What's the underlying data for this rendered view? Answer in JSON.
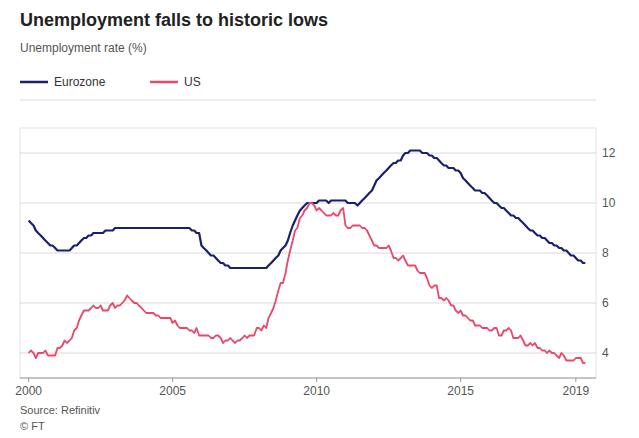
{
  "chart_data": {
    "type": "line",
    "title": "Unemployment falls to historic lows",
    "subtitle": "Unemployment rate (%)",
    "annotations": [
      "Source: Refinitiv",
      "© FT"
    ],
    "legend": "top",
    "grid": true,
    "xlim": [
      1999.7,
      2019.7
    ],
    "xticks": [
      2000,
      2005,
      2010,
      2015,
      2019
    ],
    "ylim": [
      3.0,
      13.0
    ],
    "yticks": [
      4,
      6,
      8,
      10,
      12
    ],
    "x": [
      2000.0,
      2000.08,
      2000.17,
      2000.25,
      2000.33,
      2000.42,
      2000.5,
      2000.58,
      2000.67,
      2000.75,
      2000.83,
      2000.92,
      2001.0,
      2001.08,
      2001.17,
      2001.25,
      2001.33,
      2001.42,
      2001.5,
      2001.58,
      2001.67,
      2001.75,
      2001.83,
      2001.92,
      2002.0,
      2002.08,
      2002.17,
      2002.25,
      2002.33,
      2002.42,
      2002.5,
      2002.58,
      2002.67,
      2002.75,
      2002.83,
      2002.92,
      2003.0,
      2003.08,
      2003.17,
      2003.25,
      2003.33,
      2003.42,
      2003.5,
      2003.58,
      2003.67,
      2003.75,
      2003.83,
      2003.92,
      2004.0,
      2004.08,
      2004.17,
      2004.25,
      2004.33,
      2004.42,
      2004.5,
      2004.58,
      2004.67,
      2004.75,
      2004.83,
      2004.92,
      2005.0,
      2005.08,
      2005.17,
      2005.25,
      2005.33,
      2005.42,
      2005.5,
      2005.58,
      2005.67,
      2005.75,
      2005.83,
      2005.92,
      2006.0,
      2006.08,
      2006.17,
      2006.25,
      2006.33,
      2006.42,
      2006.5,
      2006.58,
      2006.67,
      2006.75,
      2006.83,
      2006.92,
      2007.0,
      2007.08,
      2007.17,
      2007.25,
      2007.33,
      2007.42,
      2007.5,
      2007.58,
      2007.67,
      2007.75,
      2007.83,
      2007.92,
      2008.0,
      2008.08,
      2008.17,
      2008.25,
      2008.33,
      2008.42,
      2008.5,
      2008.58,
      2008.67,
      2008.75,
      2008.83,
      2008.92,
      2009.0,
      2009.08,
      2009.17,
      2009.25,
      2009.33,
      2009.42,
      2009.5,
      2009.58,
      2009.67,
      2009.75,
      2009.83,
      2009.92,
      2010.0,
      2010.08,
      2010.17,
      2010.25,
      2010.33,
      2010.42,
      2010.5,
      2010.58,
      2010.67,
      2010.75,
      2010.83,
      2010.92,
      2011.0,
      2011.08,
      2011.17,
      2011.25,
      2011.33,
      2011.42,
      2011.5,
      2011.58,
      2011.67,
      2011.75,
      2011.83,
      2011.92,
      2012.0,
      2012.08,
      2012.17,
      2012.25,
      2012.33,
      2012.42,
      2012.5,
      2012.58,
      2012.67,
      2012.75,
      2012.83,
      2012.92,
      2013.0,
      2013.08,
      2013.17,
      2013.25,
      2013.33,
      2013.42,
      2013.5,
      2013.58,
      2013.67,
      2013.75,
      2013.83,
      2013.92,
      2014.0,
      2014.08,
      2014.17,
      2014.25,
      2014.33,
      2014.42,
      2014.5,
      2014.58,
      2014.67,
      2014.75,
      2014.83,
      2014.92,
      2015.0,
      2015.08,
      2015.17,
      2015.25,
      2015.33,
      2015.42,
      2015.5,
      2015.58,
      2015.67,
      2015.75,
      2015.83,
      2015.92,
      2016.0,
      2016.08,
      2016.17,
      2016.25,
      2016.33,
      2016.42,
      2016.5,
      2016.58,
      2016.67,
      2016.75,
      2016.83,
      2016.92,
      2017.0,
      2017.08,
      2017.17,
      2017.25,
      2017.33,
      2017.42,
      2017.5,
      2017.58,
      2017.67,
      2017.75,
      2017.83,
      2017.92,
      2018.0,
      2018.08,
      2018.17,
      2018.25,
      2018.33,
      2018.42,
      2018.5,
      2018.58,
      2018.67,
      2018.75,
      2018.83,
      2018.92,
      2019.0,
      2019.08,
      2019.17,
      2019.25,
      2019.33
    ],
    "series": [
      {
        "name": "Eurozone",
        "color": "#1a1f6e",
        "values": [
          9.3,
          9.2,
          9.1,
          8.9,
          8.8,
          8.7,
          8.6,
          8.5,
          8.4,
          8.3,
          8.3,
          8.2,
          8.1,
          8.1,
          8.1,
          8.1,
          8.1,
          8.1,
          8.2,
          8.3,
          8.3,
          8.4,
          8.5,
          8.6,
          8.6,
          8.7,
          8.7,
          8.8,
          8.8,
          8.8,
          8.8,
          8.8,
          8.9,
          8.9,
          8.9,
          8.9,
          9.0,
          9.0,
          9.0,
          9.0,
          9.0,
          9.0,
          9.0,
          9.0,
          9.0,
          9.0,
          9.0,
          9.0,
          9.0,
          9.0,
          9.0,
          9.0,
          9.0,
          9.0,
          9.0,
          9.0,
          9.0,
          9.0,
          9.0,
          9.0,
          9.0,
          9.0,
          9.0,
          9.0,
          9.0,
          9.0,
          9.0,
          9.0,
          8.9,
          8.9,
          8.8,
          8.8,
          8.3,
          8.2,
          8.1,
          8.0,
          7.9,
          7.9,
          7.8,
          7.7,
          7.6,
          7.6,
          7.5,
          7.5,
          7.4,
          7.4,
          7.4,
          7.4,
          7.4,
          7.4,
          7.4,
          7.4,
          7.4,
          7.4,
          7.4,
          7.4,
          7.4,
          7.4,
          7.4,
          7.4,
          7.5,
          7.6,
          7.7,
          7.8,
          7.9,
          8.1,
          8.2,
          8.3,
          8.5,
          8.8,
          9.1,
          9.3,
          9.5,
          9.7,
          9.8,
          9.9,
          10.0,
          10.0,
          10.0,
          10.0,
          10.0,
          10.1,
          10.1,
          10.1,
          10.1,
          10.0,
          10.1,
          10.1,
          10.1,
          10.1,
          10.1,
          10.1,
          10.1,
          10.0,
          10.0,
          10.0,
          10.0,
          9.9,
          10.0,
          10.1,
          10.2,
          10.3,
          10.4,
          10.5,
          10.7,
          10.9,
          11.0,
          11.1,
          11.2,
          11.3,
          11.4,
          11.5,
          11.6,
          11.6,
          11.7,
          11.7,
          11.9,
          12.0,
          12.0,
          12.1,
          12.1,
          12.1,
          12.1,
          12.1,
          12.0,
          12.0,
          12.0,
          11.9,
          11.9,
          11.8,
          11.8,
          11.7,
          11.6,
          11.5,
          11.5,
          11.4,
          11.4,
          11.4,
          11.3,
          11.3,
          11.2,
          11.0,
          10.9,
          10.8,
          10.7,
          10.6,
          10.5,
          10.5,
          10.5,
          10.4,
          10.4,
          10.3,
          10.2,
          10.1,
          10.0,
          10.0,
          9.9,
          9.8,
          9.8,
          9.7,
          9.6,
          9.5,
          9.5,
          9.4,
          9.4,
          9.3,
          9.2,
          9.1,
          9.0,
          8.9,
          8.9,
          8.8,
          8.7,
          8.7,
          8.6,
          8.6,
          8.5,
          8.4,
          8.4,
          8.3,
          8.3,
          8.2,
          8.2,
          8.1,
          8.1,
          8.0,
          7.9,
          7.9,
          7.8,
          7.7,
          7.7,
          7.6,
          7.6
        ]
      },
      {
        "name": "US",
        "color": "#e8486a",
        "values": [
          4.0,
          4.1,
          4.0,
          3.8,
          4.0,
          4.0,
          4.0,
          4.1,
          3.9,
          3.9,
          3.9,
          3.9,
          4.2,
          4.2,
          4.3,
          4.5,
          4.4,
          4.5,
          4.6,
          4.9,
          5.0,
          5.3,
          5.5,
          5.7,
          5.7,
          5.7,
          5.8,
          5.9,
          5.8,
          5.8,
          5.9,
          5.7,
          5.7,
          5.7,
          5.9,
          6.0,
          5.8,
          5.9,
          5.9,
          6.0,
          6.1,
          6.3,
          6.2,
          6.1,
          6.0,
          6.0,
          5.9,
          5.8,
          5.7,
          5.6,
          5.6,
          5.6,
          5.6,
          5.5,
          5.5,
          5.4,
          5.4,
          5.4,
          5.4,
          5.4,
          5.2,
          5.3,
          5.1,
          5.0,
          5.0,
          5.0,
          5.0,
          4.9,
          4.9,
          4.8,
          5.0,
          4.7,
          4.7,
          4.7,
          4.7,
          4.7,
          4.6,
          4.6,
          4.7,
          4.7,
          4.6,
          4.4,
          4.5,
          4.5,
          4.6,
          4.5,
          4.4,
          4.5,
          4.5,
          4.6,
          4.7,
          4.6,
          4.7,
          4.7,
          4.7,
          5.0,
          5.0,
          4.9,
          5.1,
          5.0,
          5.4,
          5.6,
          5.8,
          6.1,
          6.5,
          6.8,
          6.8,
          7.2,
          7.7,
          8.1,
          8.5,
          8.9,
          9.0,
          9.4,
          9.5,
          9.7,
          9.8,
          10.0,
          10.0,
          9.9,
          9.7,
          9.8,
          9.7,
          9.6,
          9.5,
          9.5,
          9.5,
          9.6,
          9.5,
          9.5,
          9.7,
          9.8,
          9.1,
          9.0,
          9.0,
          9.1,
          9.1,
          9.1,
          9.1,
          9.0,
          9.0,
          8.9,
          8.7,
          8.5,
          8.3,
          8.3,
          8.2,
          8.2,
          8.2,
          8.2,
          8.3,
          8.1,
          7.8,
          7.8,
          7.7,
          7.8,
          7.9,
          7.7,
          7.5,
          7.5,
          7.5,
          7.5,
          7.3,
          7.2,
          7.2,
          7.2,
          7.0,
          6.7,
          6.6,
          6.7,
          6.7,
          6.2,
          6.2,
          6.1,
          6.2,
          6.1,
          5.9,
          5.9,
          5.7,
          5.6,
          5.7,
          5.5,
          5.5,
          5.4,
          5.3,
          5.3,
          5.1,
          5.1,
          5.1,
          5.0,
          5.0,
          5.0,
          4.9,
          4.9,
          5.0,
          5.0,
          4.7,
          4.7,
          4.9,
          4.9,
          5.0,
          4.9,
          4.6,
          4.6,
          4.6,
          4.7,
          4.5,
          4.3,
          4.3,
          4.4,
          4.3,
          4.4,
          4.2,
          4.2,
          4.1,
          4.1,
          4.0,
          4.1,
          4.0,
          4.0,
          3.9,
          3.8,
          4.0,
          3.9,
          3.7,
          3.7,
          3.7,
          3.7,
          3.8,
          3.8,
          3.8,
          3.6,
          3.6
        ]
      }
    ]
  }
}
